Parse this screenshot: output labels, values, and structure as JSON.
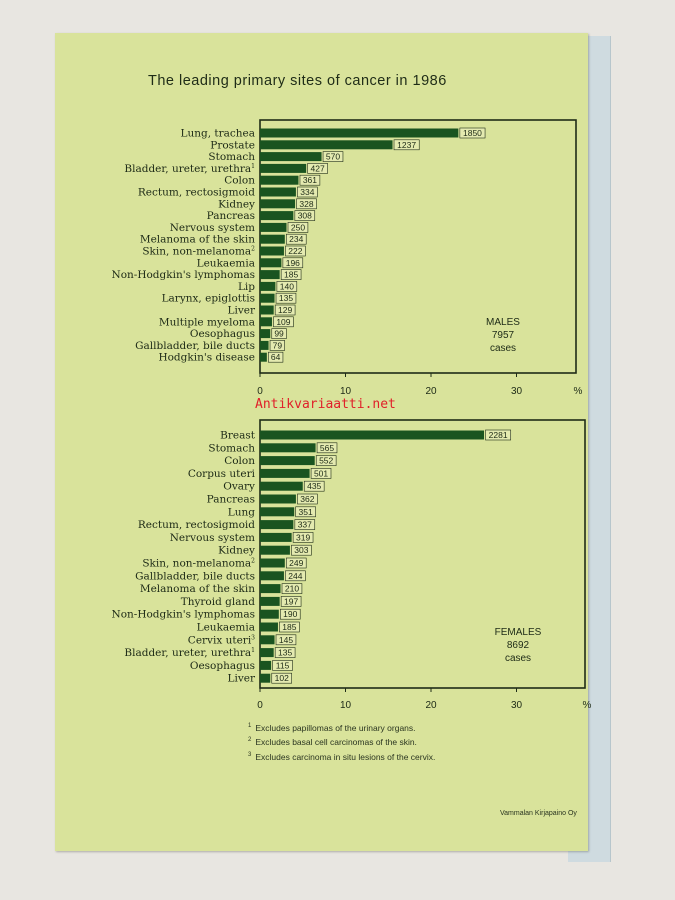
{
  "title": "The leading primary sites of cancer in 1986",
  "watermark": "Antikvariaatti.net",
  "footnotes": [
    {
      "mark": "1",
      "text": "Excludes papillomas of the urinary organs."
    },
    {
      "mark": "2",
      "text": "Excludes basal cell carcinomas of the skin."
    },
    {
      "mark": "3",
      "text": "Excludes carcinoma in situ lesions of the cervix."
    }
  ],
  "printer": "Vammalan Kirjapaino Oy",
  "colors": {
    "bar": "#1a5420",
    "frame": "#1f2c17",
    "page": "#d9e39b"
  },
  "chart_data": [
    {
      "type": "bar",
      "orientation": "horizontal",
      "panel_label": [
        "MALES",
        "7957",
        "cases"
      ],
      "xlim": [
        0,
        35
      ],
      "xticks": [
        "0",
        "10",
        "20",
        "30"
      ],
      "xunit": "%",
      "categories": [
        {
          "label": "Lung, trachea",
          "sup": ""
        },
        {
          "label": "Prostate",
          "sup": ""
        },
        {
          "label": "Stomach",
          "sup": ""
        },
        {
          "label": "Bladder, ureter, urethra",
          "sup": "1"
        },
        {
          "label": "Colon",
          "sup": ""
        },
        {
          "label": "Rectum, rectosigmoid",
          "sup": ""
        },
        {
          "label": "Kidney",
          "sup": ""
        },
        {
          "label": "Pancreas",
          "sup": ""
        },
        {
          "label": "Nervous system",
          "sup": ""
        },
        {
          "label": "Melanoma of the skin",
          "sup": ""
        },
        {
          "label": "Skin, non-melanoma",
          "sup": "2"
        },
        {
          "label": "Leukaemia",
          "sup": ""
        },
        {
          "label": "Non-Hodgkin's lymphomas",
          "sup": ""
        },
        {
          "label": "Lip",
          "sup": ""
        },
        {
          "label": "Larynx, epiglottis",
          "sup": ""
        },
        {
          "label": "Liver",
          "sup": ""
        },
        {
          "label": "Multiple myeloma",
          "sup": ""
        },
        {
          "label": "Oesophagus",
          "sup": ""
        },
        {
          "label": "Gallbladder, bile ducts",
          "sup": ""
        },
        {
          "label": "Hodgkin's disease",
          "sup": ""
        }
      ],
      "cases": [
        1850,
        1237,
        570,
        427,
        361,
        334,
        328,
        308,
        250,
        234,
        222,
        196,
        185,
        140,
        135,
        129,
        109,
        99,
        79,
        64
      ],
      "percent": [
        23.2,
        15.5,
        7.2,
        5.4,
        4.5,
        4.2,
        4.1,
        3.9,
        3.1,
        2.9,
        2.8,
        2.5,
        2.3,
        1.8,
        1.7,
        1.6,
        1.4,
        1.2,
        1.0,
        0.8
      ]
    },
    {
      "type": "bar",
      "orientation": "horizontal",
      "panel_label": [
        "FEMALES",
        "8692",
        "cases"
      ],
      "xlim": [
        0,
        35
      ],
      "xticks": [
        "0",
        "10",
        "20",
        "30"
      ],
      "xunit": "%",
      "categories": [
        {
          "label": "Breast",
          "sup": ""
        },
        {
          "label": "Stomach",
          "sup": ""
        },
        {
          "label": "Colon",
          "sup": ""
        },
        {
          "label": "Corpus uteri",
          "sup": ""
        },
        {
          "label": "Ovary",
          "sup": ""
        },
        {
          "label": "Pancreas",
          "sup": ""
        },
        {
          "label": "Lung",
          "sup": ""
        },
        {
          "label": "Rectum, rectosigmoid",
          "sup": ""
        },
        {
          "label": "Nervous system",
          "sup": ""
        },
        {
          "label": "Kidney",
          "sup": ""
        },
        {
          "label": "Skin, non-melanoma",
          "sup": "2"
        },
        {
          "label": "Gallbladder, bile ducts",
          "sup": ""
        },
        {
          "label": "Melanoma of the skin",
          "sup": ""
        },
        {
          "label": "Thyroid gland",
          "sup": ""
        },
        {
          "label": "Non-Hodgkin's lymphomas",
          "sup": ""
        },
        {
          "label": "Leukaemia",
          "sup": ""
        },
        {
          "label": "Cervix uteri",
          "sup": "3"
        },
        {
          "label": "Bladder, ureter, urethra",
          "sup": "1"
        },
        {
          "label": "Oesophagus",
          "sup": ""
        },
        {
          "label": "Liver",
          "sup": ""
        }
      ],
      "cases": [
        2281,
        565,
        552,
        501,
        435,
        362,
        351,
        337,
        319,
        303,
        249,
        244,
        210,
        197,
        190,
        185,
        145,
        135,
        115,
        102
      ],
      "percent": [
        26.2,
        6.5,
        6.4,
        5.8,
        5.0,
        4.2,
        4.0,
        3.9,
        3.7,
        3.5,
        2.9,
        2.8,
        2.4,
        2.3,
        2.2,
        2.1,
        1.7,
        1.6,
        1.3,
        1.2
      ]
    }
  ]
}
